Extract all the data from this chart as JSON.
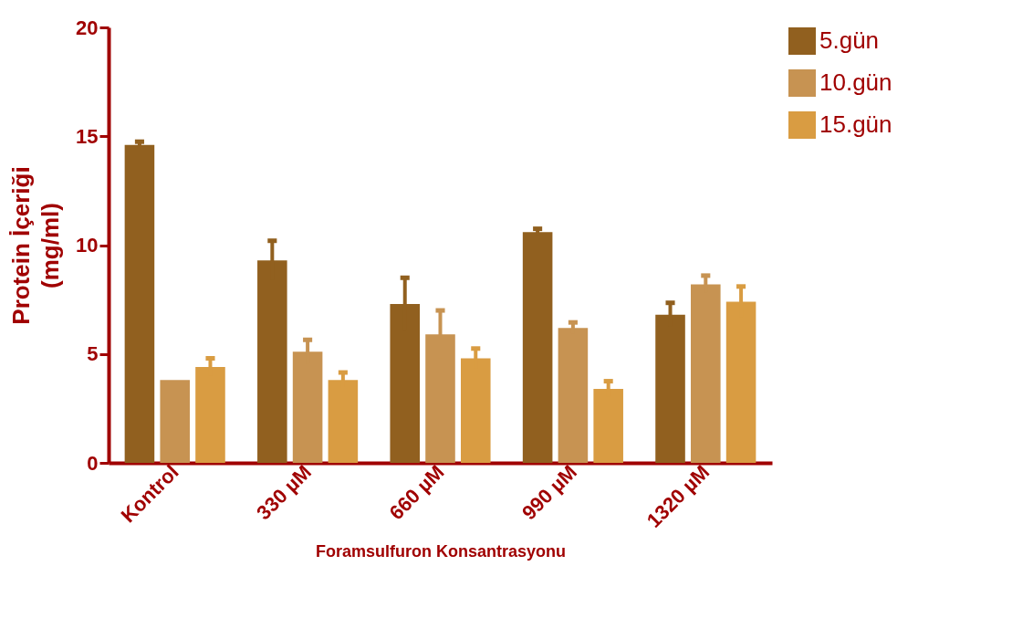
{
  "chart_data": {
    "type": "bar",
    "xlabel": "Foramsulfuron Konsantrasyonu",
    "ylabel": "Protein İçeriği\n(mg/ml)",
    "categories": [
      "Kontrol",
      "330 µM",
      "660 µM",
      "990 µM",
      "1320 µM"
    ],
    "series": [
      {
        "name": "5.gün",
        "color": "#91601f",
        "values": [
          14.6,
          9.3,
          7.3,
          10.6,
          6.8
        ],
        "errors": [
          0.15,
          0.9,
          1.2,
          0.15,
          0.55
        ]
      },
      {
        "name": "10.gün",
        "color": "#c79352",
        "values": [
          3.8,
          5.1,
          5.9,
          6.2,
          8.2
        ],
        "errors": [
          null,
          0.55,
          1.1,
          0.25,
          0.4
        ]
      },
      {
        "name": "15.gün",
        "color": "#d99c42",
        "values": [
          4.4,
          3.8,
          4.8,
          3.4,
          7.4
        ],
        "errors": [
          0.4,
          0.35,
          0.45,
          0.35,
          0.7
        ]
      }
    ],
    "ylim": [
      0,
      20
    ],
    "yticks": [
      0,
      5,
      10,
      15,
      20
    ],
    "grid": false,
    "legend": "top right"
  }
}
